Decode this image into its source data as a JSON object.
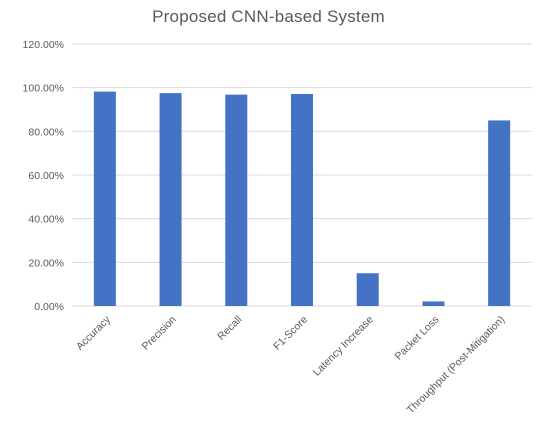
{
  "chart_data": {
    "type": "bar",
    "title": "Proposed CNN-based System",
    "xlabel": "",
    "ylabel": "",
    "categories": [
      "Accuracy",
      "Precision",
      "Recall",
      "F1-Score",
      "Latency Increase",
      "Packet Loss",
      "Throughput (Post-Mitigation)"
    ],
    "values": [
      98.2,
      97.5,
      96.8,
      97.1,
      15.0,
      2.1,
      85.0
    ],
    "yticks": [
      "0.00%",
      "20.00%",
      "40.00%",
      "60.00%",
      "80.00%",
      "100.00%",
      "120.00%"
    ],
    "ylim": [
      0,
      120
    ],
    "grid": true,
    "legend": "none",
    "bar_color": "#4472C4",
    "grid_color": "#D9D9D9",
    "text_color": "#595959"
  }
}
